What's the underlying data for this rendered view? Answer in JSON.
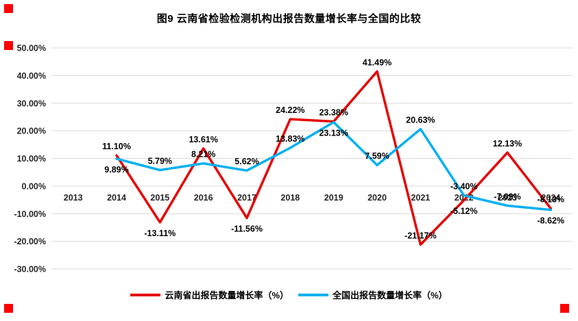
{
  "chart_data": {
    "type": "line",
    "title": "图9 云南省检验检测机构出报告数量增长率与全国的比较",
    "categories": [
      "2013",
      "2014",
      "2015",
      "2016",
      "2017",
      "2018",
      "2019",
      "2020",
      "2021",
      "2022",
      "2023",
      "2024"
    ],
    "y_tick_labels": [
      "50.00%",
      "40.00%",
      "30.00%",
      "20.00%",
      "10.00%",
      "0.00%",
      "-10.00%",
      "-20.00%",
      "-30.00%"
    ],
    "y_tick_values": [
      50,
      40,
      30,
      20,
      10,
      0,
      -10,
      -20,
      -30
    ],
    "ylim": [
      -30,
      50
    ],
    "grid": true,
    "gridline_color": "#d9d9d9",
    "legend_position": "bottom",
    "series": [
      {
        "name": "云南省出报告数量增长率（%）",
        "color": "#e60000",
        "values": [
          null,
          11.1,
          -13.11,
          13.61,
          -11.56,
          24.22,
          23.38,
          41.49,
          -21.17,
          -5.12,
          12.13,
          -8.13
        ],
        "labels": [
          null,
          "11.10%",
          "-13.11%",
          "13.61%",
          "-11.56%",
          "24.22%",
          "23.38%",
          "41.49%",
          "-21.17%",
          "-5.12%",
          "12.13%",
          "-8.13%"
        ],
        "label_pos": [
          null,
          "above",
          "below",
          "above",
          "below",
          "above",
          "above",
          "above",
          "above",
          "below",
          "above",
          "above"
        ]
      },
      {
        "name": "全国出报告数量增长率（%）",
        "color": "#00b0f0",
        "values": [
          null,
          9.89,
          5.79,
          8.21,
          5.62,
          13.83,
          23.13,
          7.59,
          20.63,
          -3.4,
          -7.09,
          -8.62
        ],
        "labels": [
          null,
          "9.89%",
          "5.79%",
          "8.21%",
          "5.62%",
          "13.83%",
          "23.13%",
          "7.59%",
          "20.63%",
          "-3.40%",
          "-7.09%",
          "-8.62%"
        ],
        "label_pos": [
          null,
          "below",
          "above",
          "above",
          "above",
          "above",
          "below",
          "above",
          "above",
          "above",
          "above",
          "below"
        ]
      }
    ]
  },
  "marker_color": "#ff0000"
}
